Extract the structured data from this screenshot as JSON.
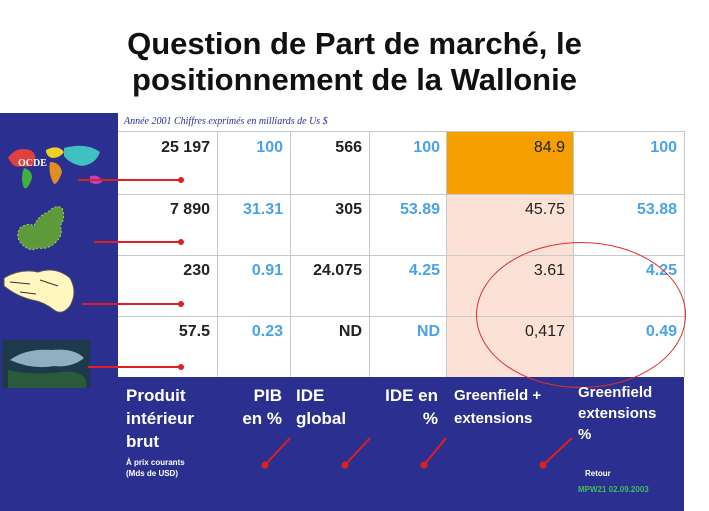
{
  "title_line1": "Question de Part de marché, le",
  "title_line2": "positionnement de la Wallonie",
  "caption": "Année 2001 Chiffres exprimés en milliards de Us $",
  "map_label": "OCDE",
  "rows": [
    [
      "25 197",
      "100",
      "566",
      "100",
      "84.9",
      "100"
    ],
    [
      "7 890",
      "31.31",
      "305",
      "53.89",
      "45.75",
      "53.88"
    ],
    [
      "230",
      "0.91",
      "24.075",
      "4.25",
      "3.61",
      "4.25"
    ],
    [
      "57.5",
      "0.23",
      "ND",
      "ND",
      "0,417",
      "0.49"
    ]
  ],
  "headers": {
    "pib_title": [
      "Produit",
      "intérieur",
      "brut"
    ],
    "pib_sub": [
      "À prix courants",
      "(Mds de USD)"
    ],
    "pib_pct": [
      "PIB",
      "en %"
    ],
    "ide_global": [
      "IDE",
      "global"
    ],
    "ide_pct": [
      "IDE en",
      "%"
    ],
    "greenfield": [
      "Greenfield +",
      "extensions"
    ],
    "greenfield_pct": [
      "Greenfield",
      "extensions",
      "%"
    ]
  },
  "footer": {
    "retour": "Retour",
    "ref": "MPW21 02.09.2003"
  },
  "colors": {
    "navy": "#2b2f8f",
    "orange": "#f5a000",
    "peach": "#fce2d6",
    "blue_text": "#4aa3e8",
    "red": "#e02020"
  },
  "icons": [
    "world-map-icon",
    "europe-map-icon",
    "belgium-map-icon",
    "wallonia-satellite-icon"
  ]
}
